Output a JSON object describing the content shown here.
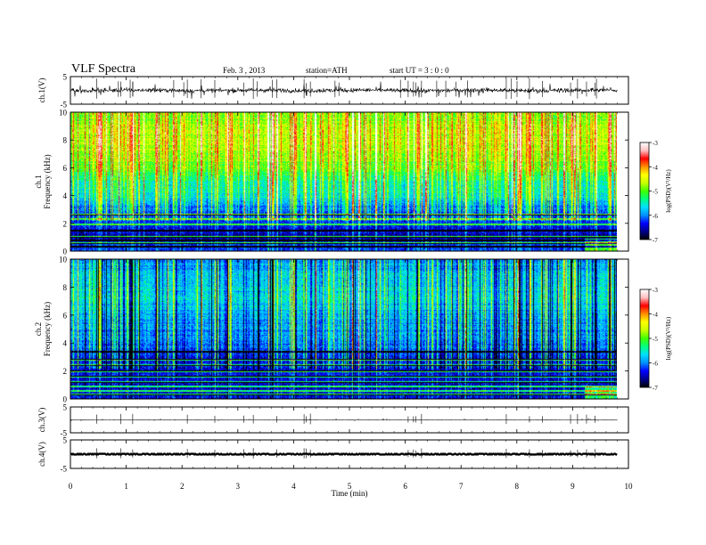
{
  "header": {
    "title": "VLF  Spectra",
    "date": "Feb. 3  , 2013",
    "station": "station=ATH",
    "start": "start  UT  =   3  : 0  : 0"
  },
  "colors": {
    "colormap": [
      "#000000",
      "#00008b",
      "#0000ff",
      "#0090ff",
      "#00e0ff",
      "#00ff80",
      "#40ff00",
      "#c8ff00",
      "#ffff00",
      "#ff9000",
      "#ff0000",
      "#ffc0c0",
      "#ffffff"
    ],
    "trace": "#000000",
    "axis": "#000000"
  },
  "chart_data": [
    {
      "type": "line",
      "name": "ch1-waveform",
      "ylabel": "ch.1(V)",
      "ylim": [
        -5,
        5
      ],
      "yticks": [
        "5",
        "-5"
      ],
      "xlim": [
        0,
        10
      ],
      "x_end": 9.8,
      "baseline": 0,
      "noise_amplitude": 0.7,
      "spike_amplitude": 2.5
    },
    {
      "type": "heatmap",
      "name": "ch1-spectrogram",
      "ylabel": "ch.1\nFrequency (kHz)",
      "ylim": [
        0,
        10
      ],
      "yticks": [
        "0",
        "2",
        "4",
        "6",
        "8",
        "10"
      ],
      "xlim": [
        0,
        10
      ],
      "x_end": 9.8,
      "value_range": [
        -7,
        -3
      ],
      "colorbar_label": "log(PSD)(V²/Hz)",
      "colorbar_ticks": [
        "-3",
        "-4",
        "-5",
        "-6",
        "-7"
      ],
      "freq_profile_khz": [
        0,
        1,
        2,
        3,
        4,
        5,
        6,
        7,
        8,
        9,
        9.8,
        10
      ],
      "freq_profile_logpsd": [
        -6.2,
        -6.6,
        -6.4,
        -6.1,
        -5.6,
        -5.5,
        -5.0,
        -4.8,
        -4.7,
        -4.7,
        -4.9,
        -5.0
      ],
      "bands_khz": [
        0.35,
        0.55,
        0.8,
        1.05,
        1.5,
        1.9,
        2.3,
        2.6
      ]
    },
    {
      "type": "heatmap",
      "name": "ch2-spectrogram",
      "ylabel": "ch.2\nFrequency (kHz)",
      "ylim": [
        0,
        10
      ],
      "yticks": [
        "0",
        "2",
        "4",
        "6",
        "8",
        "10"
      ],
      "xlim": [
        0,
        10
      ],
      "x_end": 9.8,
      "value_range": [
        -7,
        -3
      ],
      "colorbar_label": "log(PSD)(V²/Hz)",
      "colorbar_ticks": [
        "-3",
        "-4",
        "-5",
        "-6",
        "-7"
      ],
      "freq_profile_khz": [
        0,
        1,
        2,
        3,
        4,
        5,
        6,
        7,
        8,
        9,
        9.8,
        10
      ],
      "freq_profile_logpsd": [
        -6.3,
        -6.5,
        -6.4,
        -6.3,
        -6.0,
        -5.9,
        -5.8,
        -5.6,
        -5.6,
        -5.7,
        -5.9,
        -6.0
      ],
      "bands_khz": [
        0.3,
        0.6,
        0.9,
        1.2,
        1.6,
        2.0,
        2.4,
        2.8,
        3.4
      ]
    },
    {
      "type": "line",
      "name": "ch3-waveform",
      "ylabel": "ch.3(V)",
      "ylim": [
        -5,
        5
      ],
      "yticks": [
        "5",
        "-5"
      ],
      "xlim": [
        0,
        10
      ],
      "x_end": 9.8,
      "baseline": 0,
      "noise_amplitude": 0.05,
      "spike_amplitude": 0.4
    },
    {
      "type": "line",
      "name": "ch4-waveform",
      "ylabel": "ch.4(V)",
      "ylim": [
        -5,
        5
      ],
      "yticks": [
        "5",
        "-5"
      ],
      "xlim": [
        0,
        10
      ],
      "x_end": 9.8,
      "baseline": 0,
      "noise_amplitude": 0.2,
      "spike_amplitude": 0.3,
      "xlabel": "Time  (min)",
      "xticks": [
        "0",
        "1",
        "2",
        "3",
        "4",
        "5",
        "6",
        "7",
        "8",
        "9",
        "10"
      ]
    }
  ]
}
